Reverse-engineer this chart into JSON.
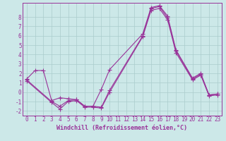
{
  "xlabel": "Windchill (Refroidissement éolien,°C)",
  "background_color": "#cce8e8",
  "grid_color": "#aacccc",
  "line_color": "#993399",
  "xlim": [
    -0.5,
    23.5
  ],
  "ylim": [
    -2.5,
    9.5
  ],
  "xticks": [
    0,
    1,
    2,
    3,
    4,
    5,
    6,
    7,
    8,
    9,
    10,
    11,
    12,
    13,
    14,
    15,
    16,
    17,
    18,
    19,
    20,
    21,
    22,
    23
  ],
  "yticks": [
    -2,
    -1,
    0,
    1,
    2,
    3,
    4,
    5,
    6,
    7,
    8
  ],
  "series": [
    {
      "x": [
        0,
        1,
        2,
        3,
        4,
        5,
        6,
        7,
        8,
        9,
        10,
        14,
        15,
        16,
        17,
        18,
        20,
        21,
        22,
        23
      ],
      "y": [
        1.4,
        2.3,
        2.3,
        -0.9,
        -0.6,
        -0.7,
        -0.8,
        -1.5,
        -1.5,
        0.3,
        2.4,
        6.2,
        9.0,
        9.2,
        8.1,
        4.5,
        1.5,
        2.0,
        -0.3,
        -0.2
      ]
    },
    {
      "x": [
        0,
        3,
        4,
        5,
        6,
        7,
        8,
        9,
        10,
        14,
        15,
        16,
        17,
        18,
        20,
        21,
        22,
        23
      ],
      "y": [
        1.3,
        -1.0,
        -1.5,
        -0.9,
        -0.8,
        -1.5,
        -1.5,
        -1.6,
        0.2,
        6.0,
        8.9,
        9.1,
        7.9,
        4.4,
        1.4,
        1.9,
        -0.3,
        -0.2
      ]
    },
    {
      "x": [
        0,
        3,
        4,
        5,
        6,
        7,
        8,
        9,
        10,
        14,
        15,
        16,
        17,
        18,
        20,
        21,
        22,
        23
      ],
      "y": [
        1.2,
        -1.1,
        -1.8,
        -1.0,
        -0.9,
        -1.6,
        -1.6,
        -1.7,
        0.0,
        5.9,
        8.7,
        8.9,
        7.7,
        4.2,
        1.3,
        1.8,
        -0.4,
        -0.3
      ]
    }
  ],
  "marker": "+",
  "markersize": 4,
  "linewidth": 0.8,
  "tick_fontsize": 5.5,
  "xlabel_fontsize": 6.0
}
